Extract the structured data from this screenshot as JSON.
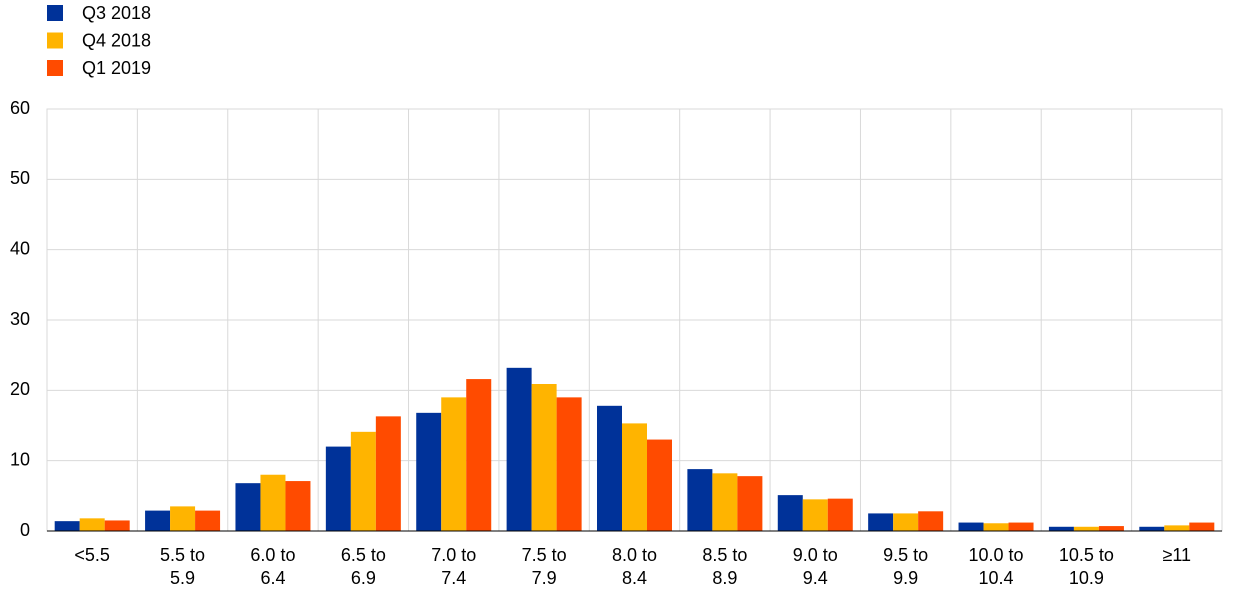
{
  "chart_data": {
    "type": "bar",
    "categories": [
      "<5.5",
      "5.5 to 5.9",
      "6.0 to 6.4",
      "6.5 to 6.9",
      "7.0 to 7.4",
      "7.5 to 7.9",
      "8.0 to 8.4",
      "8.5 to 8.9",
      "9.0 to 9.4",
      "9.5 to 9.9",
      "10.0 to 10.4",
      "10.5 to 10.9",
      "≥11"
    ],
    "series": [
      {
        "name": "Q3 2018",
        "color": "#003299",
        "values": [
          1.4,
          2.9,
          6.8,
          12.0,
          16.8,
          23.2,
          17.8,
          8.8,
          5.1,
          2.5,
          1.2,
          0.6,
          0.6
        ]
      },
      {
        "name": "Q4 2018",
        "color": "#ffb400",
        "values": [
          1.8,
          3.5,
          8.0,
          14.1,
          19.0,
          20.9,
          15.3,
          8.2,
          4.5,
          2.5,
          1.1,
          0.6,
          0.8
        ]
      },
      {
        "name": "Q1 2019",
        "color": "#ff4b00",
        "values": [
          1.5,
          2.9,
          7.1,
          16.3,
          21.6,
          19.0,
          13.0,
          7.8,
          4.6,
          2.8,
          1.2,
          0.7,
          1.2
        ]
      }
    ],
    "ylim": [
      0,
      60
    ],
    "yticks": [
      0,
      10,
      20,
      30,
      40,
      50,
      60
    ],
    "grid": true,
    "legend": "top-left"
  }
}
